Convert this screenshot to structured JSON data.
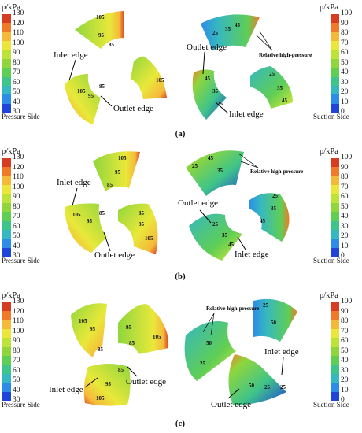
{
  "units": "p/kPa",
  "pressure_side": "Pressure Side",
  "suction_side": "Suction Side",
  "pressure_ticks": [
    "130",
    "120",
    "110",
    "100",
    "90",
    "80",
    "70",
    "60",
    "50",
    "40",
    "30"
  ],
  "suction_ticks": [
    "100",
    "90",
    "80",
    "70",
    "60",
    "50",
    "40",
    "30",
    "20",
    "10",
    "0"
  ],
  "pressure_colors": [
    "#d63c1f",
    "#f07a2a",
    "#f5b93a",
    "#e9e83a",
    "#bde33b",
    "#8fd63d",
    "#5fce55",
    "#3fc489",
    "#36b8c0",
    "#2e8ce6",
    "#1f45d8"
  ],
  "suction_colors": [
    "#d63c1f",
    "#f07a2a",
    "#f5b93a",
    "#e9e83a",
    "#bde33b",
    "#8fd63d",
    "#5fce55",
    "#3fc489",
    "#36b8c0",
    "#2e8ce6",
    "#1f45d8"
  ],
  "labels": {
    "inlet": "Inlet edge",
    "outlet": "Outlet edge",
    "relhp": "Relative high-pressure"
  },
  "panels": [
    {
      "id": "(a)",
      "pvals": [
        "105",
        "95",
        "85",
        "105",
        "95",
        "85",
        "105"
      ],
      "svals": [
        "25",
        "35",
        "45",
        "45",
        "35",
        "25",
        "25",
        "35",
        "45"
      ]
    },
    {
      "id": "(b)",
      "pvals": [
        "105",
        "95",
        "85",
        "105",
        "95",
        "85",
        "85",
        "95",
        "105"
      ],
      "svals": [
        "45",
        "35",
        "25",
        "25",
        "35",
        "45",
        "45",
        "35",
        "25"
      ]
    },
    {
      "id": "(c)",
      "pvals": [
        "105",
        "95",
        "85",
        "95",
        "85",
        "105",
        "105",
        "95",
        "85"
      ],
      "svals": [
        "25",
        "50",
        "25",
        "50",
        "25",
        "50",
        "25"
      ]
    }
  ]
}
